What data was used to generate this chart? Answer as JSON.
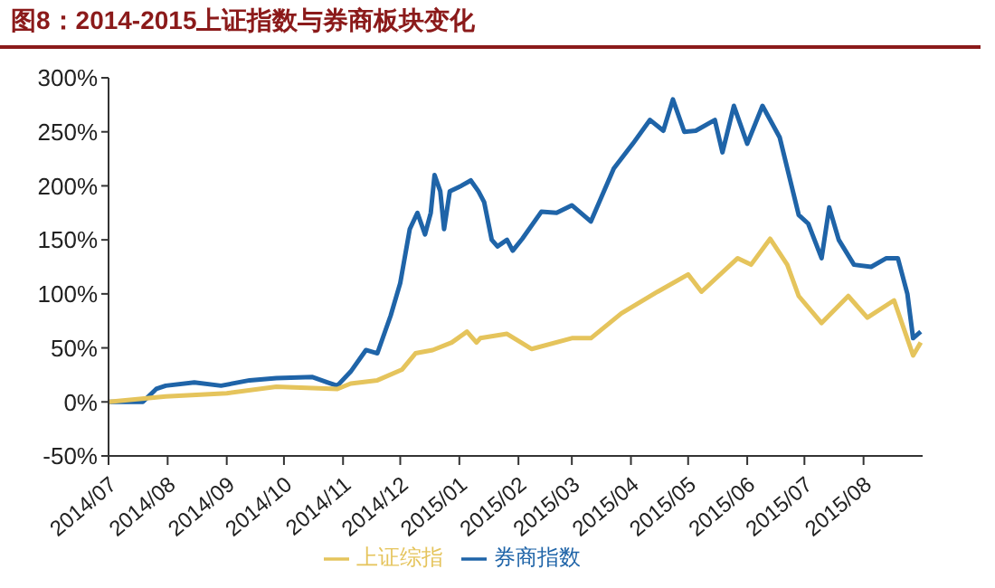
{
  "chart_data": {
    "type": "line",
    "title": "图8：2014-2015上证指数与券商板块变化",
    "xlim": [
      "2014-07-01",
      "2015-09-01"
    ],
    "xticks": [
      {
        "value": "2014-07-01",
        "label": "2014/07"
      },
      {
        "value": "2014-08-01",
        "label": "2014/08"
      },
      {
        "value": "2014-09-01",
        "label": "2014/09"
      },
      {
        "value": "2014-10-01",
        "label": "2014/10"
      },
      {
        "value": "2014-11-01",
        "label": "2014/11"
      },
      {
        "value": "2014-12-01",
        "label": "2014/12"
      },
      {
        "value": "2015-01-01",
        "label": "2015/01"
      },
      {
        "value": "2015-02-01",
        "label": "2015/02"
      },
      {
        "value": "2015-03-01",
        "label": "2015/03"
      },
      {
        "value": "2015-04-01",
        "label": "2015/04"
      },
      {
        "value": "2015-05-01",
        "label": "2015/05"
      },
      {
        "value": "2015-06-01",
        "label": "2015/06"
      },
      {
        "value": "2015-07-01",
        "label": "2015/07"
      },
      {
        "value": "2015-08-01",
        "label": "2015/08"
      }
    ],
    "ylim": [
      -50,
      300
    ],
    "yticks": [
      {
        "value": -50,
        "label": "-50%"
      },
      {
        "value": 0,
        "label": "0%"
      },
      {
        "value": 50,
        "label": "50%"
      },
      {
        "value": 100,
        "label": "100%"
      },
      {
        "value": 150,
        "label": "150%"
      },
      {
        "value": 200,
        "label": "200%"
      },
      {
        "value": 250,
        "label": "250%"
      },
      {
        "value": 300,
        "label": "300%"
      }
    ],
    "grid": false,
    "legend": "bottom",
    "marker": "none",
    "line_style": "solid",
    "series": [
      {
        "name": "券商指数",
        "color": "#1f64a8",
        "x": [
          "2014-07-01",
          "2014-07-19",
          "2014-07-26",
          "2014-07-31",
          "2014-08-15",
          "2014-08-29",
          "2014-09-13",
          "2014-09-27",
          "2014-10-16",
          "2014-10-24",
          "2014-10-29",
          "2014-11-05",
          "2014-11-13",
          "2014-11-19",
          "2014-11-26",
          "2014-12-01",
          "2014-12-06",
          "2014-12-10",
          "2014-12-14",
          "2014-12-17",
          "2014-12-19",
          "2014-12-22",
          "2014-12-24",
          "2014-12-27",
          "2015-01-02",
          "2015-01-07",
          "2015-01-11",
          "2015-01-14",
          "2015-01-18",
          "2015-01-21",
          "2015-01-26",
          "2015-01-29",
          "2015-02-03",
          "2015-02-13",
          "2015-02-21",
          "2015-03-01",
          "2015-03-11",
          "2015-03-23",
          "2015-04-02",
          "2015-04-11",
          "2015-04-18",
          "2015-04-23",
          "2015-04-29",
          "2015-05-05",
          "2015-05-15",
          "2015-05-19",
          "2015-05-25",
          "2015-06-01",
          "2015-06-09",
          "2015-06-18",
          "2015-06-28",
          "2015-07-03",
          "2015-07-10",
          "2015-07-14",
          "2015-07-19",
          "2015-07-27",
          "2015-08-05",
          "2015-08-13",
          "2015-08-19",
          "2015-08-24",
          "2015-08-27",
          "2015-08-31"
        ],
        "values": [
          0,
          0,
          12,
          15,
          18,
          15,
          20,
          22,
          23,
          18,
          15,
          28,
          48,
          45,
          80,
          110,
          160,
          175,
          155,
          175,
          210,
          195,
          160,
          195,
          200,
          205,
          195,
          185,
          150,
          144,
          150,
          140,
          151,
          176,
          175,
          182,
          167,
          216,
          239,
          261,
          251,
          280,
          250,
          251,
          261,
          231,
          274,
          239,
          274,
          245,
          173,
          165,
          133,
          180,
          150,
          127,
          125,
          133,
          133,
          100,
          59,
          65
        ]
      },
      {
        "name": "上证综指",
        "color": "#e5c45c",
        "x": [
          "2014-07-01",
          "2014-07-31",
          "2014-09-01",
          "2014-09-27",
          "2014-10-29",
          "2014-11-05",
          "2014-11-19",
          "2014-12-02",
          "2014-12-09",
          "2014-12-18",
          "2014-12-28",
          "2015-01-05",
          "2015-01-10",
          "2015-01-12",
          "2015-01-26",
          "2015-02-08",
          "2015-03-01",
          "2015-03-11",
          "2015-03-27",
          "2015-04-15",
          "2015-05-01",
          "2015-05-08",
          "2015-05-27",
          "2015-06-03",
          "2015-06-13",
          "2015-06-22",
          "2015-06-28",
          "2015-07-10",
          "2015-07-24",
          "2015-08-03",
          "2015-08-17",
          "2015-08-27",
          "2015-08-31"
        ],
        "values": [
          0,
          5,
          8,
          14,
          12,
          17,
          20,
          30,
          45,
          48,
          55,
          65,
          55,
          59,
          63,
          49,
          59,
          59,
          82,
          102,
          118,
          102,
          133,
          127,
          151,
          127,
          98,
          73,
          98,
          78,
          94,
          43,
          55
        ]
      }
    ]
  }
}
